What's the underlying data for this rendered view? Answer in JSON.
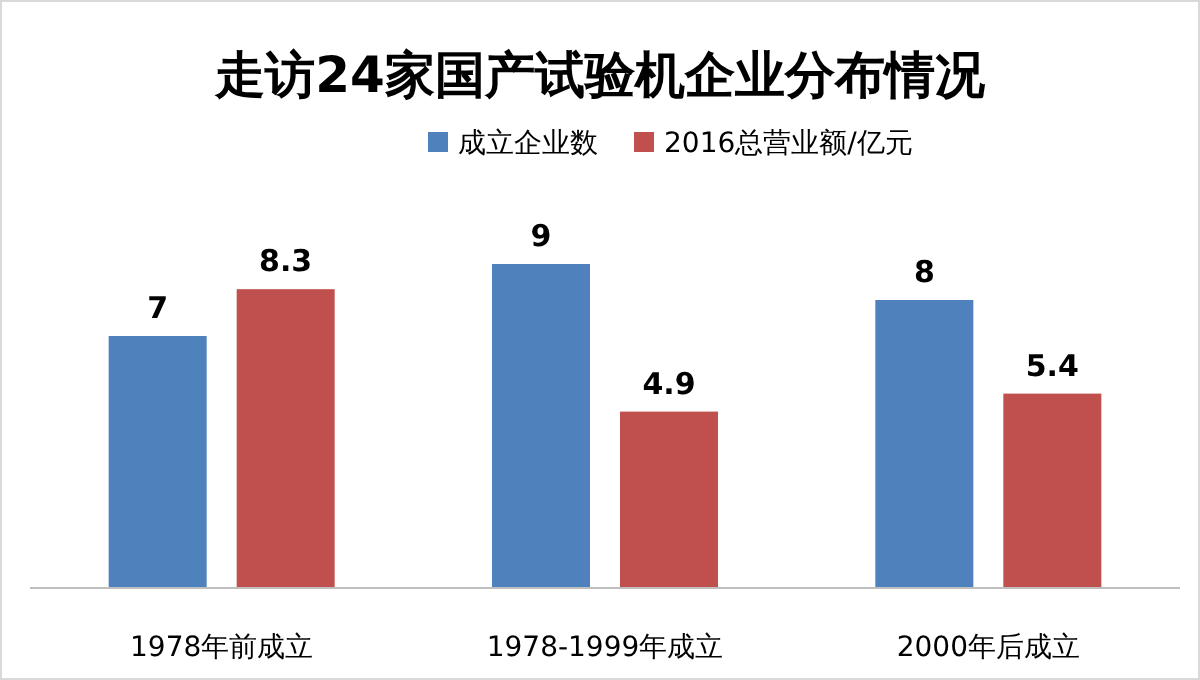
{
  "chart_data": {
    "type": "bar",
    "title": "走访24家国产试验机企业分布情况",
    "categories": [
      "1978年前成立",
      "1978-1999年成立",
      "2000年后成立"
    ],
    "series": [
      {
        "name": "成立企业数",
        "color": "#4f81bd",
        "values": [
          7,
          9,
          8
        ]
      },
      {
        "name": "2016总营业额/亿元",
        "color": "#c0504d",
        "values": [
          8.3,
          4.9,
          5.4
        ]
      }
    ],
    "data_labels": true,
    "legend": "top"
  }
}
